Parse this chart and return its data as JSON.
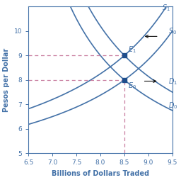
{
  "xlim": [
    6.5,
    9.5
  ],
  "ylim": [
    5,
    11
  ],
  "xticks": [
    6.5,
    7.0,
    7.5,
    8.0,
    8.5,
    9.0,
    9.5
  ],
  "yticks": [
    5,
    6,
    7,
    8,
    9,
    10
  ],
  "xlabel": "Billions of Dollars Traded",
  "ylabel": "Pesos per Dollar",
  "curve_color": "#4472a8",
  "eq_color": "#1f4e8c",
  "dashed_color": "#c97ea0",
  "E0": [
    8.5,
    8.0
  ],
  "E1": [
    8.5,
    9.0
  ],
  "label_color": "#4472a8",
  "arrow_color": "#111111",
  "bg_color": "#ffffff"
}
